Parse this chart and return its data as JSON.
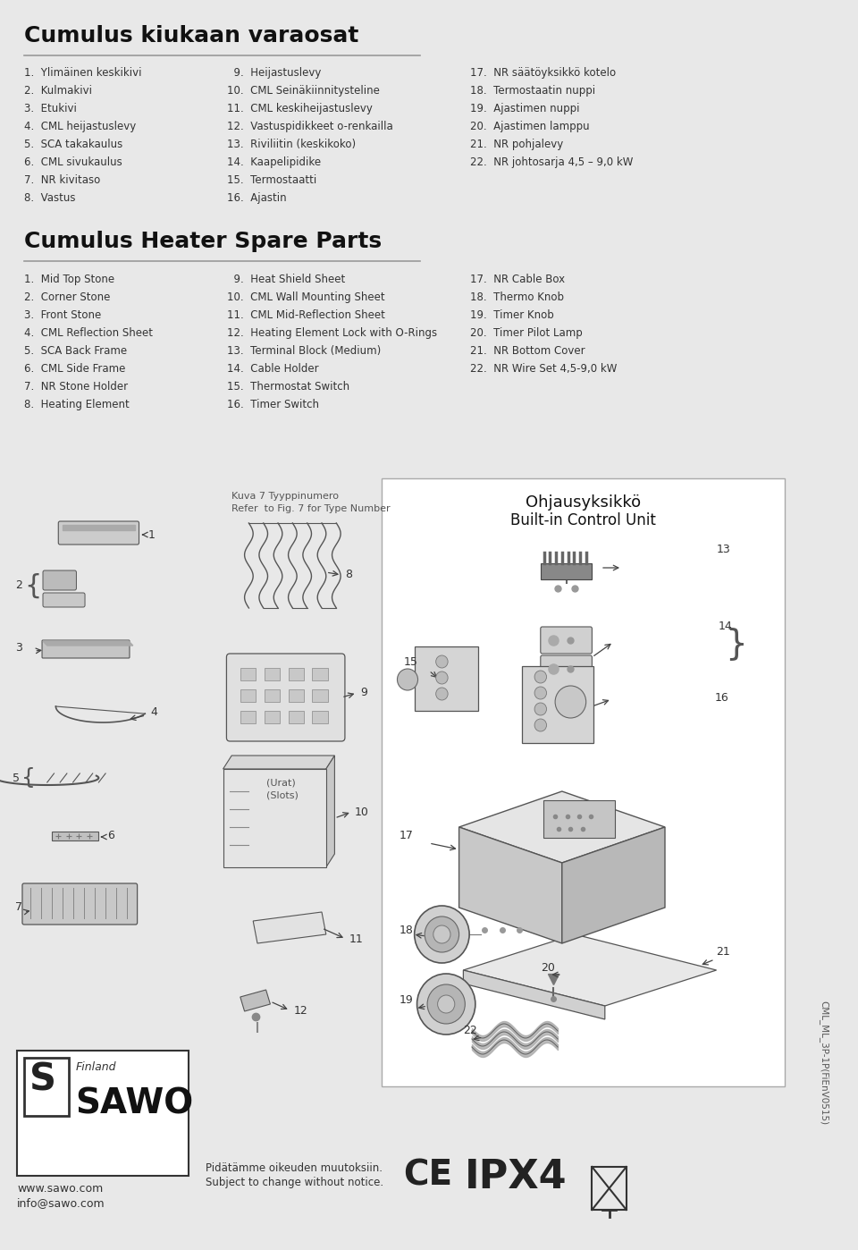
{
  "bg_color": "#e8e8e8",
  "page_bg": "#ffffff",
  "title_fi": "Cumulus kiukaan varaosat",
  "title_en": "Cumulus Heater Spare Parts",
  "parts_fi_col1": [
    "1.  Ylimäinen keskikivi",
    "2.  Kulmakivi",
    "3.  Etukivi",
    "4.  CML heijastuslevy",
    "5.  SCA takakaulus",
    "6.  CML sivukaulus",
    "7.  NR kivitaso",
    "8.  Vastus"
  ],
  "parts_fi_col2": [
    "  9.  Heijastuslevy",
    "10.  CML Seinäkiinnitysteline",
    "11.  CML keskiheijastuslevy",
    "12.  Vastuspidikkeet o-renkailla",
    "13.  Riviliitin (keskikoko)",
    "14.  Kaapelipidike",
    "15.  Termostaatti",
    "16.  Ajastin"
  ],
  "parts_fi_col3": [
    "17.  NR säätöyksikkö kotelo",
    "18.  Termostaatin nuppi",
    "19.  Ajastimen nuppi",
    "20.  Ajastimen lamppu",
    "21.  NR pohjalevy",
    "22.  NR johtosarja 4,5 – 9,0 kW"
  ],
  "parts_en_col1": [
    "1.  Mid Top Stone",
    "2.  Corner Stone",
    "3.  Front Stone",
    "4.  CML Reflection Sheet",
    "5.  SCA Back Frame",
    "6.  CML Side Frame",
    "7.  NR Stone Holder",
    "8.  Heating Element"
  ],
  "parts_en_col2": [
    "  9.  Heat Shield Sheet",
    "10.  CML Wall Mounting Sheet",
    "11.  CML Mid-Reflection Sheet",
    "12.  Heating Element Lock with O-Rings",
    "13.  Terminal Block (Medium)",
    "14.  Cable Holder",
    "15.  Thermostat Switch",
    "16.  Timer Switch"
  ],
  "parts_en_col3": [
    "17.  NR Cable Box",
    "18.  Thermo Knob",
    "19.  Timer Knob",
    "20.  Timer Pilot Lamp",
    "21.  NR Bottom Cover",
    "22.  NR Wire Set 4,5-9,0 kW"
  ],
  "label_kuva": "Kuva 7 Tyyppinumero",
  "label_refer": "Refer  to Fig. 7 for Type Number",
  "label_ohjaus_fi": "Ohjausyksikkö",
  "label_ohjaus_en": "Built-in Control Unit",
  "footer_fi": "Pidätämme oikeuden muutoksiin.",
  "footer_en": "Subject to change without notice.",
  "doc_code": "CML_ML_3P-1P(FiEnV0515)",
  "separator_color": "#999999",
  "text_color": "#333333",
  "title_color": "#111111"
}
